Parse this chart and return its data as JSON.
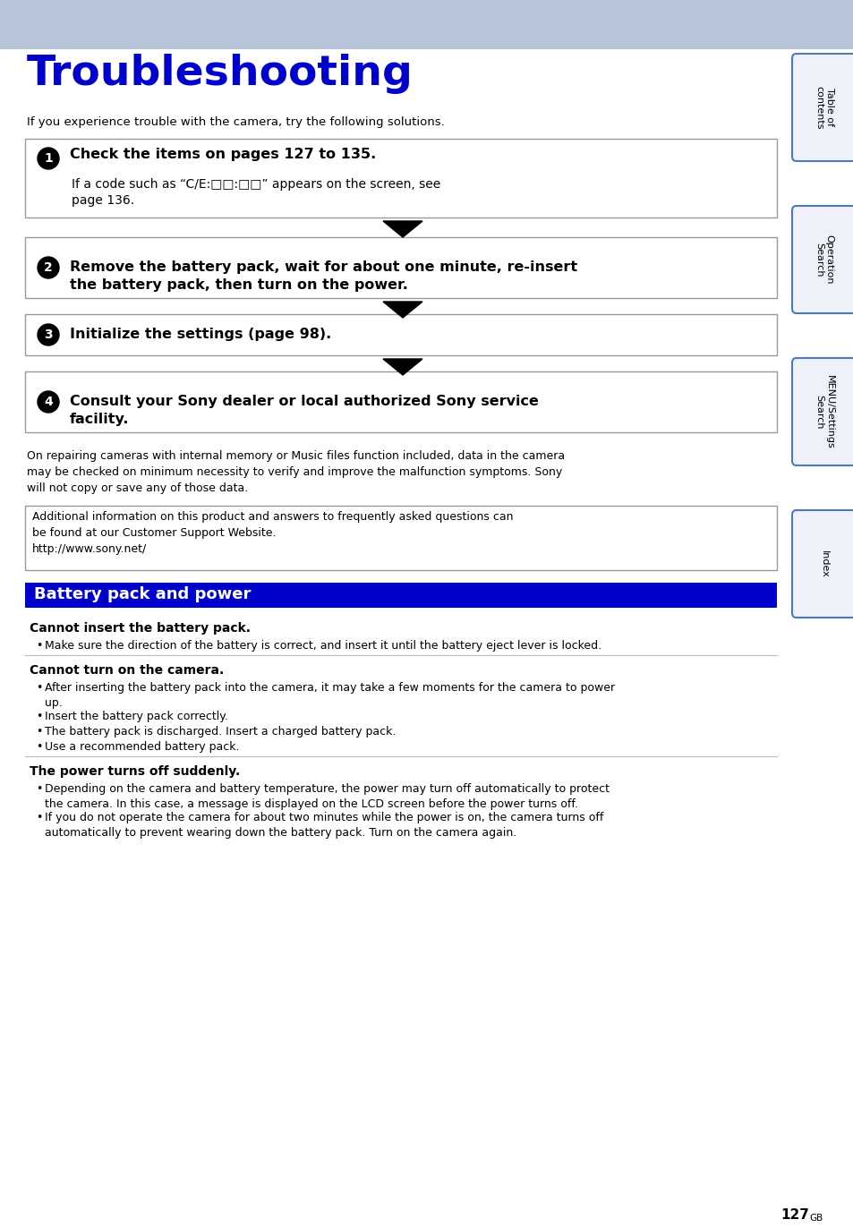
{
  "title": "Troubleshooting",
  "title_color": "#0000cc",
  "header_bg": "#b8c4d8",
  "page_bg": "#ffffff",
  "intro_text": "If you experience trouble with the camera, try the following solutions.",
  "steps": [
    {
      "num": "1",
      "bold_text": "Check the items on pages 127 to 135.",
      "sub_text": "If a code such as “C/E:□□:□□” appears on the screen, see\npage 136."
    },
    {
      "num": "2",
      "bold_text": "Remove the battery pack, wait for about one minute, re-insert\nthe battery pack, then turn on the power.",
      "sub_text": ""
    },
    {
      "num": "3",
      "bold_text": "Initialize the settings (page 98).",
      "sub_text": ""
    },
    {
      "num": "4",
      "bold_text": "Consult your Sony dealer or local authorized Sony service\nfacility.",
      "sub_text": ""
    }
  ],
  "repair_text": "On repairing cameras with internal memory or Music files function included, data in the camera\nmay be checked on minimum necessity to verify and improve the malfunction symptoms. Sony\nwill not copy or save any of those data.",
  "info_box_text": "Additional information on this product and answers to frequently asked questions can\nbe found at our Customer Support Website.\nhttp://www.sony.net/",
  "battery_section_title": "Battery pack and power",
  "battery_section_bg": "#0000cc",
  "battery_section_text_color": "#ffffff",
  "subsections": [
    {
      "heading": "Cannot insert the battery pack.",
      "bullets": [
        "Make sure the direction of the battery is correct, and insert it until the battery eject lever is locked."
      ],
      "has_divider_above": false
    },
    {
      "heading": "Cannot turn on the camera.",
      "bullets": [
        "After inserting the battery pack into the camera, it may take a few moments for the camera to power\nup.",
        "Insert the battery pack correctly.",
        "The battery pack is discharged. Insert a charged battery pack.",
        "Use a recommended battery pack."
      ],
      "has_divider_above": true
    },
    {
      "heading": "The power turns off suddenly.",
      "bullets": [
        "Depending on the camera and battery temperature, the power may turn off automatically to protect\nthe camera. In this case, a message is displayed on the LCD screen before the power turns off.",
        "If you do not operate the camera for about two minutes while the power is on, the camera turns off\nautomatically to prevent wearing down the battery pack. Turn on the camera again."
      ],
      "has_divider_above": true
    }
  ],
  "side_tabs": [
    {
      "label": "Table of\ncontents"
    },
    {
      "label": "Operation\nSearch"
    },
    {
      "label": "MENU/Settings\nSearch"
    },
    {
      "label": "Index"
    }
  ],
  "tab_color": "#4a7aba",
  "page_num": "127",
  "page_suffix": "GB"
}
